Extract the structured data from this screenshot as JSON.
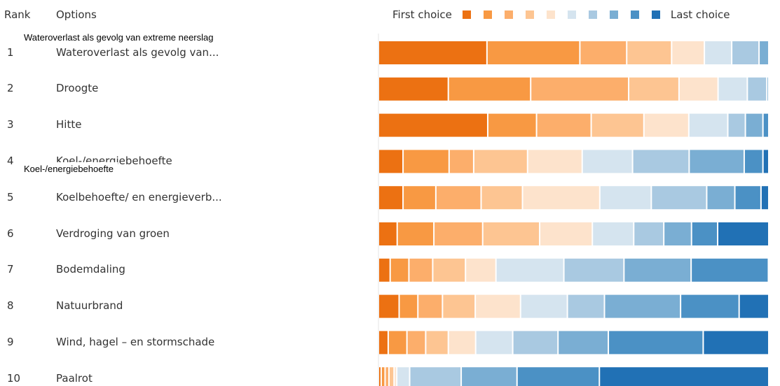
{
  "header": {
    "rank": "Rank",
    "options": "Options"
  },
  "legend": {
    "first": "First choice",
    "last": "Last choice",
    "colors": [
      "#ec7112",
      "#f89943",
      "#fcae6b",
      "#fdc592",
      "#fde3cc",
      "#d5e4ef",
      "#a9c9e1",
      "#7aaed3",
      "#4b91c5",
      "#2171b5"
    ]
  },
  "tooltips": {
    "row1": "Wateroverlast als gevolg van extreme neerslag",
    "row4": "Koel-/energiebehoefte"
  },
  "chart_data": {
    "type": "bar",
    "stacked": true,
    "categories": [
      "Wateroverlast als gevolg van...",
      "Droogte",
      "Hitte",
      "Koel-/energiebehoefte",
      "Koelbehoefte/ en energieverb...",
      "Verdroging van groen",
      "Bodemdaling",
      "Natuurbrand",
      "Wind, hagel – en stormschade",
      "Paalrot"
    ],
    "ranks": [
      "1",
      "2",
      "3",
      "4",
      "5",
      "6",
      "7",
      "8",
      "9",
      "10"
    ],
    "segments": [
      [
        27.8,
        23.8,
        12.0,
        11.5,
        8.4,
        7.0,
        7.0,
        2.5
      ],
      [
        17.9,
        21.1,
        25.1,
        12.9,
        10.0,
        7.5,
        5.0,
        0.5
      ],
      [
        28.0,
        12.5,
        14.0,
        13.5,
        11.5,
        10.0,
        4.5,
        4.5,
        1.5
      ],
      [
        6.3,
        11.8,
        6.3,
        13.8,
        14.0,
        12.9,
        14.5,
        14.1,
        4.8,
        1.5
      ],
      [
        6.3,
        8.4,
        11.6,
        10.6,
        19.8,
        13.2,
        14.2,
        7.2,
        6.7,
        2.0
      ],
      [
        4.8,
        9.4,
        12.5,
        14.6,
        13.5,
        10.6,
        7.7,
        7.1,
        6.7,
        13.1
      ],
      [
        3.0,
        4.8,
        6.1,
        8.4,
        7.8,
        17.4,
        15.4,
        17.2,
        19.8,
        0.1
      ],
      [
        5.3,
        4.8,
        6.3,
        8.4,
        11.6,
        12.0,
        9.5,
        19.5,
        15.0,
        7.6
      ],
      [
        2.5,
        4.8,
        4.8,
        5.8,
        7.0,
        9.5,
        11.6,
        12.9,
        24.3,
        16.8
      ],
      [
        0.7,
        1.0,
        1.0,
        1.3,
        0.7,
        3.3,
        13.2,
        14.3,
        21.1,
        43.4
      ]
    ]
  }
}
